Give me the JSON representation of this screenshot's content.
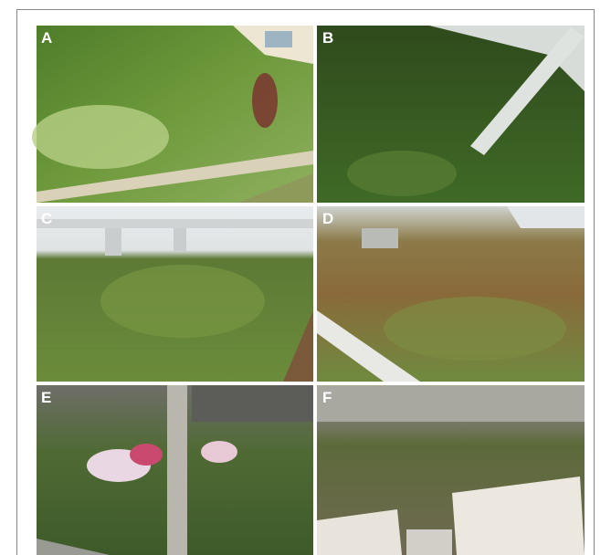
{
  "figure": {
    "panels": [
      {
        "label": "A"
      },
      {
        "label": "B"
      },
      {
        "label": "C"
      },
      {
        "label": "D"
      },
      {
        "label": "E"
      },
      {
        "label": "F"
      }
    ]
  }
}
